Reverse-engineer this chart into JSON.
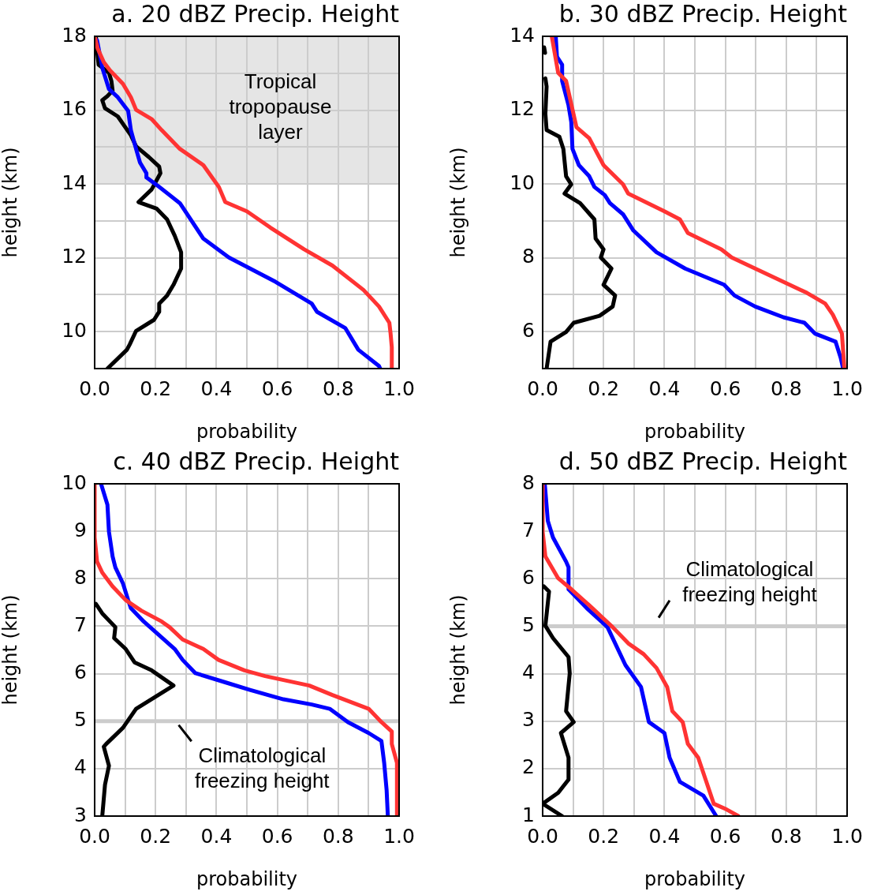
{
  "chart_data": [
    {
      "type": "line",
      "title": "a. 20 dBZ Precip. Height",
      "xlabel": "probability",
      "ylabel": "height (km)",
      "xlim": [
        0,
        1
      ],
      "ylim": [
        9,
        18
      ],
      "xticks": [
        {
          "value": 0,
          "label": "0.0"
        },
        {
          "value": 0.1,
          "label": null
        },
        {
          "value": 0.2,
          "label": "0.2"
        },
        {
          "value": 0.3,
          "label": null
        },
        {
          "value": 0.4,
          "label": "0.4"
        },
        {
          "value": 0.5,
          "label": null
        },
        {
          "value": 0.6,
          "label": "0.6"
        },
        {
          "value": 0.7,
          "label": null
        },
        {
          "value": 0.8,
          "label": "0.8"
        },
        {
          "value": 0.9,
          "label": null
        },
        {
          "value": 1,
          "label": "1.0"
        }
      ],
      "yticks": [
        {
          "value": 9,
          "label": null
        },
        10,
        {
          "value": 11,
          "label": null
        },
        12,
        {
          "value": 13,
          "label": null
        },
        14,
        {
          "value": 15,
          "label": null
        },
        16,
        {
          "value": 17,
          "label": null
        },
        18
      ],
      "grid": true,
      "legend": false,
      "marker": "none",
      "bands": [
        {
          "axis": "y",
          "from": 14,
          "to": 18,
          "label": "Tropical tropopause layer",
          "color": "#e5e5e5"
        }
      ],
      "series": [
        {
          "color": "#ff3333",
          "x": [
            0,
            0.01,
            0.03,
            0.05,
            0.093,
            0.119,
            0.136,
            0.187,
            0.22,
            0.28,
            0.357,
            0.408,
            0.429,
            0.5,
            0.577,
            0.688,
            0.781,
            0.883,
            0.934,
            0.968,
            0.972,
            0.976,
            0.976
          ],
          "values": [
            18,
            17.67,
            17.3,
            17.08,
            16.71,
            16.35,
            16.01,
            15.76,
            15.46,
            14.95,
            14.51,
            13.92,
            13.51,
            13.26,
            12.82,
            12.23,
            11.79,
            11.13,
            10.68,
            10.24,
            9.95,
            9.58,
            9
          ]
        },
        {
          "color": "#0000ff",
          "x": [
            0.008,
            0.025,
            0.047,
            0.076,
            0.11,
            0.119,
            0.136,
            0.149,
            0.17,
            0.17,
            0.212,
            0.28,
            0.357,
            0.441,
            0.594,
            0.713,
            0.73,
            0.823,
            0.866,
            0.934,
            0.938
          ],
          "values": [
            17.89,
            17.15,
            16.57,
            16.35,
            15.98,
            15.46,
            14.95,
            14.58,
            14.29,
            14.18,
            13.92,
            13.48,
            12.52,
            12.01,
            11.35,
            10.76,
            10.54,
            10.1,
            9.51,
            9.07,
            9
          ]
        },
        {
          "color": "#000000",
          "x": [
            0.004,
            0.008,
            0.013,
            0.047,
            0.055,
            0.059,
            0.042,
            0.025,
            0.034,
            0.076,
            0.119,
            0.136,
            0.178,
            0.212,
            0.216,
            0.187,
            0.144,
            0.204,
            0.238,
            0.263,
            0.284,
            0.284,
            0.259,
            0.238,
            0.212,
            0.212,
            0.195,
            0.136,
            0.115,
            0.106,
            0.042
          ],
          "values": [
            18,
            17.6,
            17.23,
            17.01,
            16.79,
            16.53,
            16.38,
            16.27,
            16.05,
            15.83,
            15.32,
            15.02,
            14.73,
            14.47,
            14.29,
            13.85,
            13.51,
            13.33,
            13.04,
            12.6,
            12.15,
            11.71,
            11.27,
            10.98,
            10.76,
            10.54,
            10.32,
            10.02,
            9.65,
            9.51,
            9
          ]
        }
      ]
    },
    {
      "type": "line",
      "title": "b. 30 dBZ Precip. Height",
      "xlabel": "probability",
      "ylabel": "height (km)",
      "xlim": [
        0,
        1
      ],
      "ylim": [
        5,
        14
      ],
      "xticks": [
        {
          "value": 0,
          "label": "0.0"
        },
        {
          "value": 0.1,
          "label": null
        },
        {
          "value": 0.2,
          "label": "0.2"
        },
        {
          "value": 0.3,
          "label": null
        },
        {
          "value": 0.4,
          "label": "0.4"
        },
        {
          "value": 0.5,
          "label": null
        },
        {
          "value": 0.6,
          "label": "0.6"
        },
        {
          "value": 0.7,
          "label": null
        },
        {
          "value": 0.8,
          "label": "0.8"
        },
        {
          "value": 0.9,
          "label": null
        },
        {
          "value": 1,
          "label": "1.0"
        }
      ],
      "yticks": [
        {
          "value": 5,
          "label": null
        },
        6,
        {
          "value": 7,
          "label": null
        },
        8,
        {
          "value": 9,
          "label": null
        },
        10,
        {
          "value": 11,
          "label": null
        },
        12,
        {
          "value": 13,
          "label": null
        },
        14
      ],
      "grid": true,
      "legend": false,
      "marker": "none",
      "series": [
        {
          "color": "#ff3333",
          "x": [
            0.03,
            0.051,
            0.077,
            0.111,
            0.153,
            0.2,
            0.264,
            0.281,
            0.4,
            0.451,
            0.477,
            0.587,
            0.621,
            0.698,
            0.868,
            0.928,
            0.953,
            0.983,
            0.991
          ],
          "values": [
            14,
            13.01,
            12.79,
            11.54,
            11.24,
            10.51,
            9.99,
            9.74,
            9.26,
            9.04,
            8.67,
            8.23,
            8.01,
            7.71,
            7.05,
            6.76,
            6.46,
            5.95,
            5
          ]
        },
        {
          "color": "#0000ff",
          "x": [
            0.043,
            0.047,
            0.064,
            0.064,
            0.085,
            0.094,
            0.098,
            0.119,
            0.153,
            0.17,
            0.204,
            0.221,
            0.264,
            0.298,
            0.374,
            0.468,
            0.596,
            0.63,
            0.698,
            0.791,
            0.86,
            0.894,
            0.962,
            0.979,
            0.987
          ],
          "values": [
            14,
            13.45,
            13.23,
            12.79,
            12.13,
            11.68,
            10.95,
            10.51,
            10.21,
            9.92,
            9.7,
            9.48,
            9.18,
            8.74,
            8.15,
            7.71,
            7.27,
            6.98,
            6.68,
            6.39,
            6.24,
            5.95,
            5.73,
            5.29,
            5
          ]
        },
        {
          "color": "#000000",
          "x": [
            0.005,
            0.008,
            null,
            0.009,
            0.013,
            0.009,
            0.013,
            0.055,
            0.068,
            0.077,
            0.094,
            0.072,
            0.123,
            0.17,
            0.174,
            0.2,
            0.191,
            0.226,
            0.2,
            0.238,
            0.23,
            0.187,
            0.102,
            0.077,
            0.026,
            0.013
          ],
          "values": [
            13.7,
            13.55,
            null,
            12.86,
            12.64,
            11.9,
            11.46,
            11.28,
            10.95,
            10.21,
            9.99,
            9.74,
            9.48,
            9.04,
            8.52,
            8.23,
            8.01,
            7.71,
            7.27,
            6.98,
            6.68,
            6.43,
            6.24,
            5.99,
            5.73,
            5
          ]
        }
      ]
    },
    {
      "type": "line",
      "title": "c. 40 dBZ Precip. Height",
      "xlabel": "probability",
      "ylabel": "height (km)",
      "xlim": [
        0,
        1
      ],
      "ylim": [
        3,
        10
      ],
      "xticks": [
        {
          "value": 0,
          "label": "0.0"
        },
        {
          "value": 0.1,
          "label": null
        },
        {
          "value": 0.2,
          "label": "0.2"
        },
        {
          "value": 0.3,
          "label": null
        },
        {
          "value": 0.4,
          "label": "0.4"
        },
        {
          "value": 0.5,
          "label": null
        },
        {
          "value": 0.6,
          "label": "0.6"
        },
        {
          "value": 0.7,
          "label": null
        },
        {
          "value": 0.8,
          "label": "0.8"
        },
        {
          "value": 0.9,
          "label": null
        },
        {
          "value": 1,
          "label": "1.0"
        }
      ],
      "yticks": [
        3,
        4,
        5,
        6,
        7,
        8,
        9,
        10
      ],
      "grid": true,
      "legend": false,
      "marker": "none",
      "ref_lines": [
        {
          "axis": "y",
          "value": 5,
          "label": "Climatological freezing height",
          "color": "#cccccc"
        }
      ],
      "series": [
        {
          "color": "#ff3333",
          "x": [
            0,
            0,
            0.008,
            0.025,
            0.059,
            0.102,
            0.153,
            0.22,
            0.246,
            0.289,
            0.357,
            0.407,
            0.492,
            0.56,
            0.705,
            0.781,
            0.9,
            0.942,
            0.976,
            0.976,
            0.993,
            0.993
          ],
          "values": [
            10,
            8.87,
            8.36,
            8.13,
            7.84,
            7.55,
            7.33,
            7.1,
            6.98,
            6.72,
            6.52,
            6.29,
            6.07,
            5.95,
            5.75,
            5.55,
            5.26,
            4.98,
            4.78,
            4.52,
            4.12,
            3
          ]
        },
        {
          "color": "#0000ff",
          "x": [
            0.021,
            0.042,
            0.047,
            0.059,
            0.068,
            0.093,
            0.11,
            0.119,
            0.161,
            0.212,
            0.263,
            0.289,
            0.331,
            0.433,
            0.51,
            0.62,
            0.713,
            0.772,
            0.832,
            0.9,
            0.942,
            0.951,
            0.959,
            0.963
          ],
          "values": [
            10,
            9.56,
            8.99,
            8.47,
            8.24,
            7.9,
            7.55,
            7.38,
            7.1,
            6.81,
            6.52,
            6.29,
            6.01,
            5.81,
            5.66,
            5.46,
            5.35,
            5.26,
            4.98,
            4.75,
            4.58,
            4.12,
            3.55,
            3
          ]
        },
        {
          "color": "#000000",
          "x": [
            0.004,
            0.025,
            0.068,
            0.064,
            0.102,
            0.131,
            0.187,
            0.259,
            0.136,
            0.093,
            0.038,
            0.03,
            0.047,
            0.034,
            0.025
          ],
          "values": [
            7.47,
            7.27,
            6.98,
            6.75,
            6.52,
            6.24,
            6.07,
            5.75,
            5.26,
            4.86,
            4.52,
            4.46,
            4.06,
            3.66,
            3
          ]
        }
      ]
    },
    {
      "type": "line",
      "title": "d. 50 dBZ Precip. Height",
      "xlabel": "probability",
      "ylabel": "height (km)",
      "xlim": [
        0,
        1
      ],
      "ylim": [
        1,
        8
      ],
      "xticks": [
        {
          "value": 0,
          "label": "0.0"
        },
        {
          "value": 0.1,
          "label": null
        },
        {
          "value": 0.2,
          "label": "0.2"
        },
        {
          "value": 0.3,
          "label": null
        },
        {
          "value": 0.4,
          "label": "0.4"
        },
        {
          "value": 0.5,
          "label": null
        },
        {
          "value": 0.6,
          "label": "0.6"
        },
        {
          "value": 0.7,
          "label": null
        },
        {
          "value": 0.8,
          "label": "0.8"
        },
        {
          "value": 0.9,
          "label": null
        },
        {
          "value": 1,
          "label": "1.0"
        }
      ],
      "yticks": [
        1,
        2,
        3,
        4,
        5,
        6,
        7,
        8
      ],
      "grid": true,
      "legend": false,
      "marker": "none",
      "ref_lines": [
        {
          "axis": "y",
          "value": 5,
          "label": "Climatological freezing height",
          "color": "#cccccc"
        }
      ],
      "series": [
        {
          "color": "#ff3333",
          "x": [
            0,
            0,
            0.009,
            0.051,
            0.094,
            0.153,
            0.23,
            0.281,
            0.332,
            0.374,
            0.409,
            0.426,
            0.46,
            0.477,
            0.511,
            0.562,
            0.604,
            0.643
          ],
          "values": [
            8,
            6.99,
            6.47,
            6.01,
            5.78,
            5.44,
            4.98,
            4.64,
            4.41,
            4.12,
            3.72,
            3.21,
            2.98,
            2.52,
            2.23,
            1.26,
            1.14,
            1
          ]
        },
        {
          "color": "#0000ff",
          "x": [
            0.007,
            0.017,
            0.034,
            0.077,
            0.085,
            0.085,
            0.145,
            0.213,
            0.272,
            0.323,
            0.349,
            0.4,
            0.417,
            0.451,
            0.528,
            0.57
          ],
          "values": [
            8,
            7.22,
            6.87,
            6.36,
            6.24,
            5.78,
            5.38,
            4.98,
            4.18,
            3.72,
            2.98,
            2.75,
            2.23,
            1.72,
            1.43,
            1
          ]
        },
        {
          "color": "#000000",
          "x": [
            0.004,
            0.021,
            0.009,
            0.034,
            0.085,
            0.089,
            0.077,
            0.102,
            0.06,
            0.085,
            0.085,
            0.051,
            0,
            0.064
          ],
          "values": [
            5.84,
            5.73,
            5.01,
            4.75,
            4.35,
            4.01,
            3.21,
            2.98,
            2.75,
            2.23,
            1.77,
            1.49,
            1.26,
            1
          ]
        }
      ]
    }
  ]
}
